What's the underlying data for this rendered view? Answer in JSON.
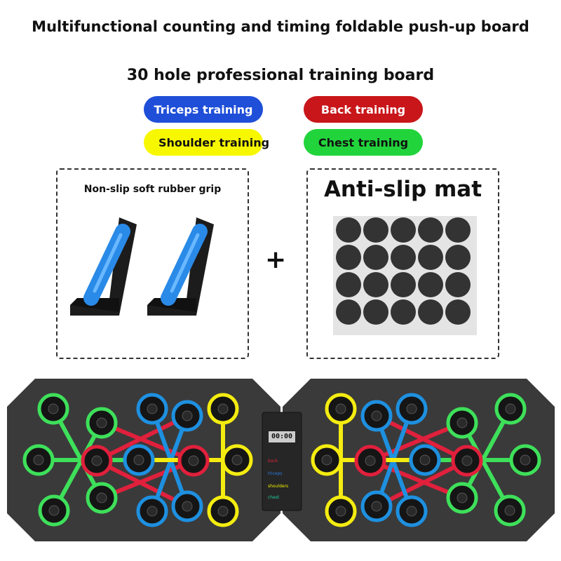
{
  "header": {
    "title": "Multifunctional counting and timing foldable push-up board",
    "subtitle": "30 hole professional training board"
  },
  "legend_pills": [
    {
      "label": "Triceps training",
      "color": "#1f4fd8",
      "text_color": "#ffffff"
    },
    {
      "label": "Back training",
      "color": "#c8161a",
      "text_color": "#ffffff"
    },
    {
      "label": "Shoulder training",
      "color": "#f7f700",
      "text_color": "#111111"
    },
    {
      "label": "Chest training",
      "color": "#22d43c",
      "text_color": "#111111"
    }
  ],
  "accessories": {
    "grip_label": "Non-slip soft rubber grip",
    "mat_label": "Anti-slip mat",
    "plus": "+"
  },
  "board": {
    "display": "00:00",
    "panel_labels": [
      {
        "label": "back",
        "color": "#e0203a"
      },
      {
        "label": "triceps",
        "color": "#2a7de0"
      },
      {
        "label": "shoulders",
        "color": "#f0f000"
      },
      {
        "label": "chest",
        "color": "#20d0a0"
      }
    ],
    "colors": {
      "green": "#3ee05a",
      "red": "#e0203c",
      "blue": "#1e90e0",
      "yellow": "#f4ec10",
      "board": "#3a3a3a"
    }
  }
}
